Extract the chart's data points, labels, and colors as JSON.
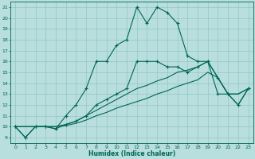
{
  "xlabel": "Humidex (Indice chaleur)",
  "background_color": "#b8dede",
  "line_color": "#006655",
  "grid_color": "#80b8b8",
  "xlim": [
    -0.5,
    23.5
  ],
  "ylim": [
    8.5,
    21.5
  ],
  "yticks": [
    9,
    10,
    11,
    12,
    13,
    14,
    15,
    16,
    17,
    18,
    19,
    20,
    21
  ],
  "xticks": [
    0,
    1,
    2,
    3,
    4,
    5,
    6,
    7,
    8,
    9,
    10,
    11,
    12,
    13,
    14,
    15,
    16,
    17,
    18,
    19,
    20,
    21,
    22,
    23
  ],
  "lines": [
    {
      "x": [
        0,
        1,
        2,
        3,
        4,
        5,
        6,
        7,
        8,
        9,
        10,
        11,
        12,
        13,
        14,
        15,
        16,
        17,
        18,
        19,
        20,
        21,
        22,
        23
      ],
      "y": [
        10,
        9,
        10,
        10,
        9.8,
        11,
        12,
        13.5,
        16,
        16,
        17.5,
        18,
        21,
        19.5,
        21,
        20.5,
        19.5,
        16.5,
        16,
        16,
        13,
        13,
        12,
        13.5
      ],
      "marker": true
    },
    {
      "x": [
        0,
        1,
        2,
        3,
        4,
        5,
        6,
        7,
        8,
        9,
        10,
        11,
        12,
        13,
        14,
        15,
        16,
        17,
        18,
        19,
        20,
        21,
        22,
        23
      ],
      "y": [
        10,
        9,
        10,
        10,
        9.8,
        10.2,
        10.5,
        11,
        12,
        12.5,
        13,
        13.5,
        16,
        16,
        16,
        15.5,
        15.5,
        15,
        15.5,
        16,
        14.5,
        13,
        12,
        13.5
      ],
      "marker": true
    },
    {
      "x": [
        0,
        1,
        2,
        3,
        4,
        5,
        6,
        7,
        8,
        9,
        10,
        11,
        12,
        13,
        14,
        15,
        16,
        17,
        18,
        19,
        20,
        21,
        22,
        23
      ],
      "y": [
        10,
        10,
        10,
        10,
        10,
        10.2,
        10.5,
        11,
        11.5,
        12,
        12.5,
        13,
        13.5,
        13.8,
        14.2,
        14.5,
        15,
        15.2,
        15.5,
        16,
        14.5,
        13,
        13,
        13.5
      ],
      "marker": false
    },
    {
      "x": [
        0,
        1,
        2,
        3,
        4,
        5,
        6,
        7,
        8,
        9,
        10,
        11,
        12,
        13,
        14,
        15,
        16,
        17,
        18,
        19,
        20,
        21,
        22,
        23
      ],
      "y": [
        10,
        10,
        10,
        10,
        10,
        10.1,
        10.3,
        10.6,
        11,
        11.3,
        11.7,
        12,
        12.3,
        12.6,
        13,
        13.3,
        13.7,
        14,
        14.3,
        15,
        14.5,
        13,
        13,
        13.5
      ],
      "marker": false
    }
  ]
}
